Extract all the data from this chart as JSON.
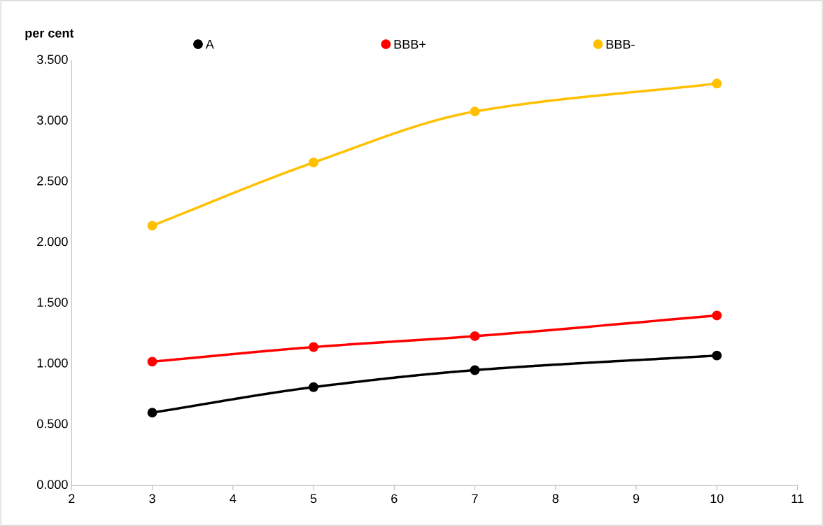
{
  "chart_data": {
    "type": "line",
    "ylabel": "per cent",
    "x": [
      3,
      5,
      7,
      10
    ],
    "series": [
      {
        "name": "A",
        "color": "#000000",
        "values": [
          0.6,
          0.81,
          0.95,
          1.07
        ]
      },
      {
        "name": "BBB+",
        "color": "#ff0000",
        "values": [
          1.02,
          1.14,
          1.23,
          1.4
        ]
      },
      {
        "name": "BBB-",
        "color": "#ffc000",
        "values": [
          2.14,
          2.66,
          3.08,
          3.31
        ]
      }
    ],
    "xlim": [
      2,
      11
    ],
    "xticks": [
      2,
      3,
      4,
      5,
      6,
      7,
      8,
      9,
      10,
      11
    ],
    "ylim": [
      0,
      3.5
    ],
    "yticks": [
      {
        "value": 0,
        "label": "0.000"
      },
      {
        "value": 0.5,
        "label": "0.500"
      },
      {
        "value": 1,
        "label": "1.000"
      },
      {
        "value": 1.5,
        "label": "1.500"
      },
      {
        "value": 2,
        "label": "2.000"
      },
      {
        "value": 2.5,
        "label": "2.500"
      },
      {
        "value": 3,
        "label": "3.000"
      },
      {
        "value": 3.5,
        "label": "3.500"
      }
    ],
    "marker": "circle",
    "line_style": "solid",
    "legend": "top",
    "grid": false
  }
}
